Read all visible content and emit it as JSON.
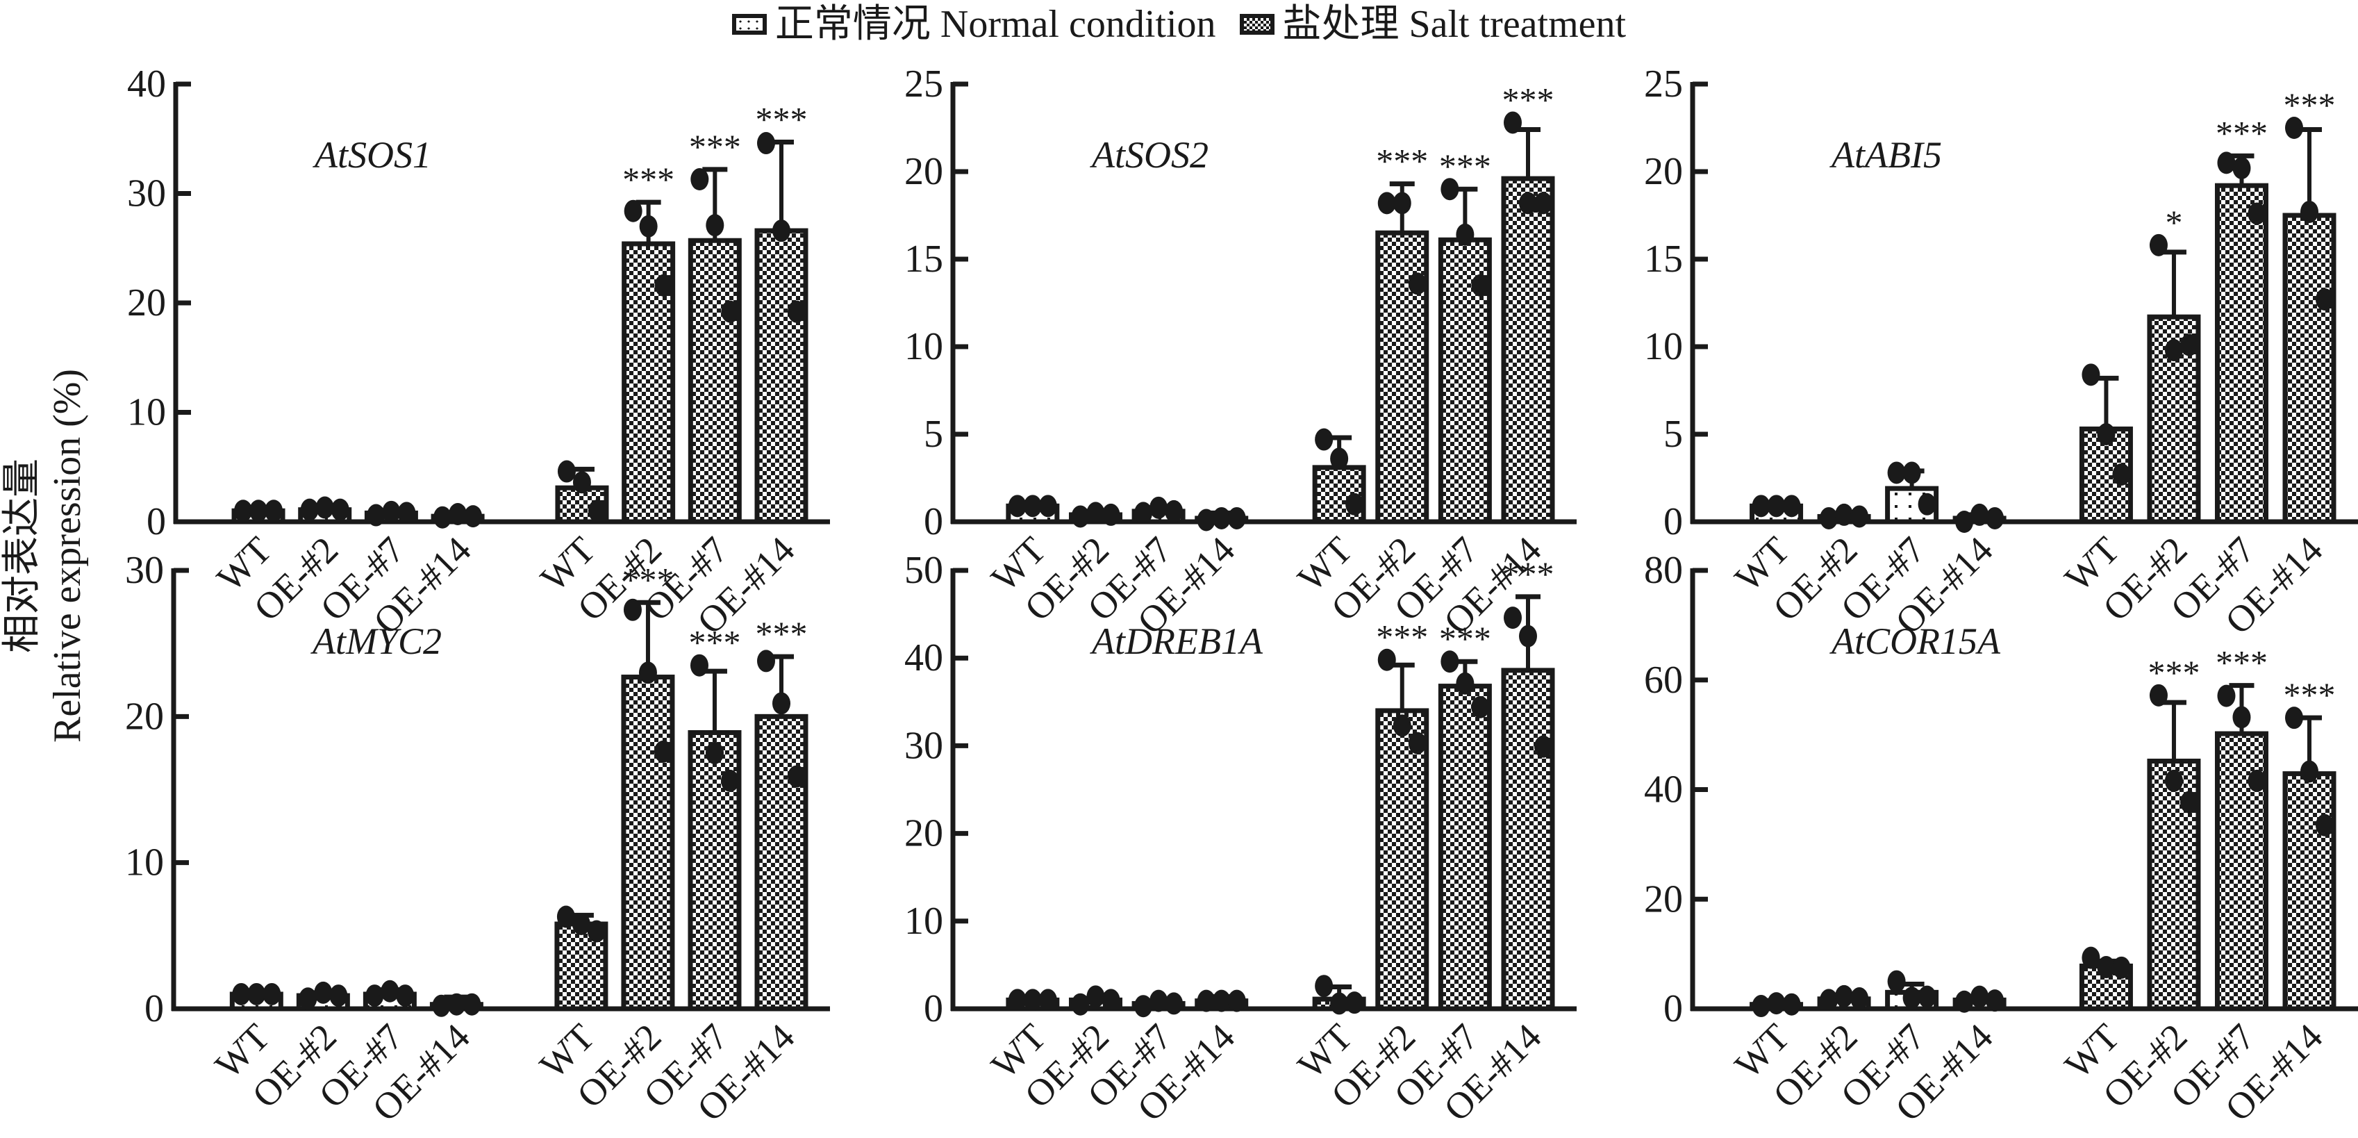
{
  "legend": {
    "normal_label": "正常情况 Normal condition",
    "salt_label": "盐处理 Salt treatment"
  },
  "y_axis_title": {
    "line1": "相对表达量",
    "line2": "Relative expression (%)"
  },
  "chart_data": {
    "type": "bar",
    "layout": "2x3 small multiples",
    "legend_position": "top-center",
    "grid": false,
    "categories": [
      "WT",
      "OE-#2",
      "OE-#7",
      "OE-#14",
      "WT",
      "OE-#2",
      "OE-#7",
      "OE-#14"
    ],
    "groups": [
      "Normal condition",
      "Salt treatment"
    ],
    "ylabel": "相对表达量 Relative expression (%)",
    "panels": [
      {
        "gene": "AtSOS1",
        "ylim": [
          0,
          40
        ],
        "yticks": [
          0,
          10,
          20,
          30,
          40
        ],
        "series": [
          {
            "name": "Normal condition",
            "categories": [
              "WT",
              "OE-#2",
              "OE-#7",
              "OE-#14"
            ],
            "values": [
              1.0,
              1.1,
              0.8,
              0.5
            ],
            "err_upper": [
              1.0,
              1.3,
              1.0,
              0.7
            ],
            "points": [
              [
                1.0,
                1.0,
                1.0
              ],
              [
                1.1,
                1.3,
                1.1
              ],
              [
                0.6,
                0.9,
                0.8
              ],
              [
                0.4,
                0.7,
                0.5
              ]
            ],
            "significance": [
              "",
              "",
              "",
              ""
            ]
          },
          {
            "name": "Salt treatment",
            "categories": [
              "WT",
              "OE-#2",
              "OE-#7",
              "OE-#14"
            ],
            "values": [
              3.1,
              25.4,
              25.7,
              26.6
            ],
            "err_upper": [
              4.8,
              29.2,
              32.2,
              34.7
            ],
            "points": [
              [
                4.6,
                3.6,
                1.0
              ],
              [
                28.4,
                27.0,
                21.6
              ],
              [
                31.3,
                27.1,
                19.2
              ],
              [
                34.6,
                26.6,
                19.2
              ]
            ],
            "significance": [
              "",
              "***",
              "***",
              "***"
            ]
          }
        ]
      },
      {
        "gene": "AtSOS2",
        "ylim": [
          0,
          25
        ],
        "yticks": [
          0,
          5,
          10,
          15,
          20,
          25
        ],
        "series": [
          {
            "name": "Normal condition",
            "categories": [
              "WT",
              "OE-#2",
              "OE-#7",
              "OE-#14"
            ],
            "values": [
              0.9,
              0.4,
              0.6,
              0.2
            ],
            "err_upper": [
              0.9,
              0.6,
              0.8,
              0.5
            ],
            "points": [
              [
                0.9,
                0.9,
                0.9
              ],
              [
                0.3,
                0.5,
                0.4
              ],
              [
                0.5,
                0.8,
                0.6
              ],
              [
                0.1,
                0.2,
                0.2
              ]
            ],
            "significance": [
              "",
              "",
              "",
              ""
            ]
          },
          {
            "name": "Salt treatment",
            "categories": [
              "WT",
              "OE-#2",
              "OE-#7",
              "OE-#14"
            ],
            "values": [
              3.1,
              16.5,
              16.1,
              19.6
            ],
            "err_upper": [
              4.8,
              19.3,
              19.0,
              22.4
            ],
            "points": [
              [
                4.7,
                3.6,
                1.0
              ],
              [
                18.2,
                18.2,
                13.6
              ],
              [
                19.0,
                16.4,
                13.5
              ],
              [
                22.8,
                18.2,
                18.2
              ]
            ],
            "significance": [
              "",
              "***",
              "***",
              "***"
            ]
          }
        ]
      },
      {
        "gene": "AtABI5",
        "ylim": [
          0,
          25
        ],
        "yticks": [
          0,
          5,
          10,
          15,
          20,
          25
        ],
        "series": [
          {
            "name": "Normal condition",
            "categories": [
              "WT",
              "OE-#2",
              "OE-#7",
              "OE-#14"
            ],
            "values": [
              0.9,
              0.3,
              1.9,
              0.2
            ],
            "err_upper": [
              0.9,
              0.4,
              2.9,
              0.4
            ],
            "points": [
              [
                0.9,
                0.9,
                0.9
              ],
              [
                0.2,
                0.4,
                0.3
              ],
              [
                2.8,
                2.8,
                1.0
              ],
              [
                0.0,
                0.4,
                0.2
              ]
            ],
            "significance": [
              "",
              "",
              "",
              ""
            ]
          },
          {
            "name": "Salt treatment",
            "categories": [
              "WT",
              "OE-#2",
              "OE-#7",
              "OE-#14"
            ],
            "values": [
              5.3,
              11.7,
              19.2,
              17.5
            ],
            "err_upper": [
              8.2,
              15.4,
              20.9,
              22.4
            ],
            "points": [
              [
                8.4,
                5.0,
                2.7
              ],
              [
                15.8,
                9.8,
                10.1
              ],
              [
                20.5,
                20.2,
                17.6
              ],
              [
                22.5,
                17.7,
                12.7
              ]
            ],
            "significance": [
              "",
              "*",
              "***",
              "***"
            ]
          }
        ]
      },
      {
        "gene": "AtMYC2",
        "ylim": [
          0,
          30
        ],
        "yticks": [
          0,
          10,
          20,
          30
        ],
        "series": [
          {
            "name": "Normal condition",
            "categories": [
              "WT",
              "OE-#2",
              "OE-#7",
              "OE-#14"
            ],
            "values": [
              1.0,
              0.9,
              1.0,
              0.3
            ],
            "err_upper": [
              1.0,
              1.1,
              1.3,
              0.8
            ],
            "points": [
              [
                1.0,
                1.0,
                1.0
              ],
              [
                0.7,
                1.1,
                0.9
              ],
              [
                0.9,
                1.2,
                0.9
              ],
              [
                0.2,
                0.3,
                0.3
              ]
            ],
            "significance": [
              "",
              "",
              "",
              ""
            ]
          },
          {
            "name": "Salt treatment",
            "categories": [
              "WT",
              "OE-#2",
              "OE-#7",
              "OE-#14"
            ],
            "values": [
              5.8,
              22.7,
              18.9,
              20.0
            ],
            "err_upper": [
              6.4,
              27.8,
              23.1,
              24.1
            ],
            "points": [
              [
                6.3,
                5.8,
                5.3
              ],
              [
                27.3,
                23.0,
                17.6
              ],
              [
                23.5,
                17.5,
                15.6
              ],
              [
                23.8,
                20.9,
                15.9
              ]
            ],
            "significance": [
              "",
              "***",
              "***",
              "***"
            ]
          }
        ]
      },
      {
        "gene": "AtDREB1A",
        "ylim": [
          0,
          50
        ],
        "yticks": [
          0,
          10,
          20,
          30,
          40,
          50
        ],
        "series": [
          {
            "name": "Normal condition",
            "categories": [
              "WT",
              "OE-#2",
              "OE-#7",
              "OE-#14"
            ],
            "values": [
              1.0,
              1.0,
              0.6,
              0.9
            ],
            "err_upper": [
              1.0,
              1.2,
              0.9,
              1.4
            ],
            "points": [
              [
                1.0,
                1.0,
                1.0
              ],
              [
                0.5,
                1.4,
                1.0
              ],
              [
                0.3,
                0.9,
                0.6
              ],
              [
                0.9,
                0.9,
                0.9
              ]
            ],
            "significance": [
              "",
              "",
              "",
              ""
            ]
          },
          {
            "name": "Salt treatment",
            "categories": [
              "WT",
              "OE-#2",
              "OE-#7",
              "OE-#14"
            ],
            "values": [
              1.1,
              34.0,
              36.8,
              38.6
            ],
            "err_upper": [
              2.5,
              39.2,
              39.6,
              47.0
            ],
            "points": [
              [
                2.6,
                0.6,
                0.7
              ],
              [
                39.8,
                32.3,
                30.3
              ],
              [
                39.6,
                37.1,
                34.4
              ],
              [
                44.6,
                42.5,
                29.9
              ]
            ],
            "significance": [
              "",
              "***",
              "***",
              "***"
            ]
          }
        ]
      },
      {
        "gene": "AtCOR15A",
        "ylim": [
          0,
          80
        ],
        "yticks": [
          0,
          20,
          40,
          60,
          80
        ],
        "series": [
          {
            "name": "Normal condition",
            "categories": [
              "WT",
              "OE-#2",
              "OE-#7",
              "OE-#14"
            ],
            "values": [
              0.8,
              1.8,
              3.0,
              1.6
            ],
            "err_upper": [
              1.5,
              2.2,
              4.5,
              2.2
            ],
            "points": [
              [
                0.5,
                1.0,
                0.8
              ],
              [
                1.6,
                2.3,
                1.9
              ],
              [
                5.0,
                2.0,
                2.2
              ],
              [
                1.3,
                2.2,
                1.5
              ]
            ],
            "significance": [
              "",
              "",
              "",
              ""
            ]
          },
          {
            "name": "Salt treatment",
            "categories": [
              "WT",
              "OE-#2",
              "OE-#7",
              "OE-#14"
            ],
            "values": [
              7.8,
              45.2,
              50.2,
              42.9
            ],
            "err_upper": [
              8.7,
              55.9,
              59.0,
              53.1
            ],
            "points": [
              [
                9.3,
                7.6,
                7.5
              ],
              [
                57.2,
                41.6,
                37.7
              ],
              [
                57.1,
                53.2,
                41.6
              ],
              [
                53.1,
                43.3,
                33.5
              ]
            ],
            "significance": [
              "",
              "***",
              "***",
              "***"
            ]
          }
        ]
      }
    ]
  }
}
